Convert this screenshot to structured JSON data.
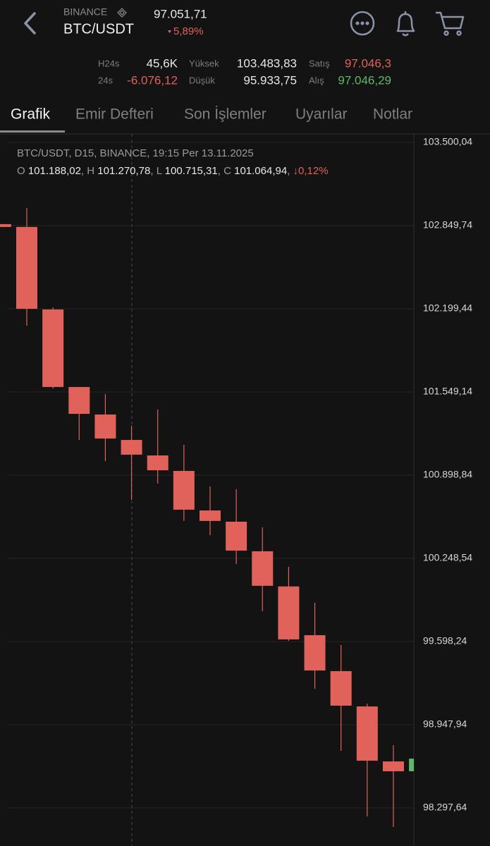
{
  "header": {
    "exchange": "BINANCE",
    "pair": "BTC/USDT",
    "price": "97.051,71",
    "change": "5,89%"
  },
  "stats": [
    {
      "label": "H24s",
      "value": "45,6K",
      "color": "#e8e8e8"
    },
    {
      "label": "24s",
      "value": "-6.076,12",
      "color": "#e0625a"
    },
    {
      "label": "Yüksek",
      "value": "103.483,83",
      "color": "#e8e8e8"
    },
    {
      "label": "Düşük",
      "value": "95.933,75",
      "color": "#e8e8e8"
    },
    {
      "label": "Satış",
      "value": "97.046,3",
      "color": "#e0625a"
    },
    {
      "label": "Alış",
      "value": "97.046,29",
      "color": "#5fb868"
    }
  ],
  "tabs": [
    "Grafik",
    "Emir Defteri",
    "Son İşlemler",
    "Uyarılar",
    "Notlar"
  ],
  "chart_data": {
    "type": "candlestick",
    "title": "BTC/USDT, D15, BINANCE, 19:15 Per 13.11.2025",
    "ohlc_legend": {
      "labels": [
        "O",
        "H",
        "L",
        "C"
      ],
      "values": [
        "101.188,02",
        "101.270,78",
        "100.715,31",
        "101.064,94"
      ],
      "separator": ",",
      "change": "↓0,12%"
    },
    "series": {
      "open": [
        102861,
        102839,
        102194,
        101588,
        101373,
        101174,
        101053,
        100932,
        100623,
        100535,
        100304,
        100029,
        99648,
        99367,
        99091,
        98661,
        98584
      ],
      "high": [
        102861,
        102987,
        102210,
        101588,
        101533,
        101285,
        101411,
        101136,
        100811,
        100789,
        100491,
        100182,
        99901,
        99571,
        99113,
        98788,
        98683
      ],
      "low": [
        102839,
        102067,
        101577,
        101174,
        101009,
        100706,
        100833,
        100541,
        100430,
        100204,
        99835,
        99604,
        99229,
        98744,
        98231,
        98149,
        98584
      ],
      "close": [
        102839,
        102199,
        101588,
        101378,
        101185,
        101059,
        100937,
        100629,
        100541,
        100309,
        100034,
        99615,
        99372,
        99097,
        98667,
        98584,
        98683
      ]
    },
    "up_color": "#5fb868",
    "down_color": "#e0625a",
    "ylim": [
      98000,
      103566
    ],
    "yticks": [
      {
        "value": 103500.04,
        "label": "103.500,04"
      },
      {
        "value": 102849.74,
        "label": "102.849,74"
      },
      {
        "value": 102199.44,
        "label": "102.199,44"
      },
      {
        "value": 101549.14,
        "label": "101.549,14"
      },
      {
        "value": 100898.84,
        "label": "100.898,84"
      },
      {
        "value": 100248.54,
        "label": "100.248,54"
      },
      {
        "value": 99598.24,
        "label": "99.598,24"
      },
      {
        "value": 98947.94,
        "label": "98.947,94"
      },
      {
        "value": 98297.64,
        "label": "98.297,64"
      }
    ],
    "grid": true
  }
}
